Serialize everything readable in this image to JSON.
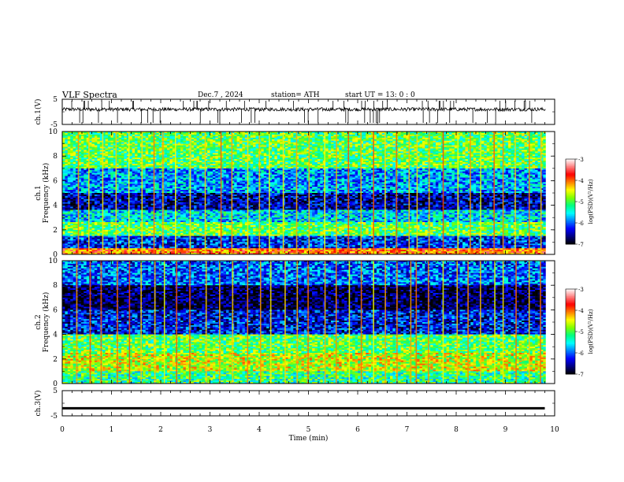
{
  "header": {
    "title": "VLF  Spectra",
    "date": "Dec.7  , 2024",
    "station": "station= ATH",
    "start": "start  UT  =    13: 0   : 0"
  },
  "colors": {
    "colormap": [
      "#000000",
      "#000080",
      "#0000ff",
      "#0080ff",
      "#00ffff",
      "#00ff80",
      "#80ff00",
      "#ffff00",
      "#ff8000",
      "#ff0000",
      "#ff8080",
      "#ffffff"
    ]
  },
  "chart_data": [
    {
      "type": "line",
      "id": "ch1-waveform",
      "ylabel": "ch.1(V)",
      "ylim": [
        -5,
        5
      ],
      "yticks": [
        "5",
        "-5"
      ],
      "note_values": "noise waveform around ~1 V with frequent short spikes"
    },
    {
      "type": "heatmap",
      "id": "ch1-spectrogram",
      "ylabel_line1": "ch.1",
      "ylabel_line2": "Frequency  (kHz)",
      "ylim": [
        0,
        10
      ],
      "yticks": [
        "0",
        "2",
        "4",
        "6",
        "8",
        "10"
      ],
      "colorbar": {
        "label": "log(PSD)(V²/Hz)",
        "range": [
          -7,
          -3
        ],
        "ticks": [
          "-3",
          "-4",
          "-5",
          "-6",
          "-7"
        ]
      },
      "bands": [
        {
          "f_low": 0.0,
          "f_high": 0.5,
          "level": -4.0
        },
        {
          "f_low": 0.5,
          "f_high": 1.5,
          "level": -6.2
        },
        {
          "f_low": 1.5,
          "f_high": 2.6,
          "level": -5.0
        },
        {
          "f_low": 2.6,
          "f_high": 3.6,
          "level": -5.6
        },
        {
          "f_low": 3.6,
          "f_high": 5.0,
          "level": -6.5
        },
        {
          "f_low": 5.0,
          "f_high": 7.0,
          "level": -5.8
        },
        {
          "f_low": 7.0,
          "f_high": 10.0,
          "level": -5.0
        }
      ]
    },
    {
      "type": "heatmap",
      "id": "ch2-spectrogram",
      "ylabel_line1": "ch.2",
      "ylabel_line2": "Frequency  (kHz)",
      "ylim": [
        0,
        10
      ],
      "yticks": [
        "0",
        "2",
        "4",
        "6",
        "8",
        "10"
      ],
      "colorbar": {
        "label": "log(PSD)(V²/Hz)",
        "range": [
          -7,
          -3
        ],
        "ticks": [
          "-3",
          "-4",
          "-5",
          "-6",
          "-7"
        ]
      },
      "bands": [
        {
          "f_low": 0.0,
          "f_high": 1.0,
          "level": -5.2
        },
        {
          "f_low": 1.0,
          "f_high": 2.5,
          "level": -4.6
        },
        {
          "f_low": 2.5,
          "f_high": 4.0,
          "level": -5.0
        },
        {
          "f_low": 4.0,
          "f_high": 6.0,
          "level": -6.3
        },
        {
          "f_low": 6.0,
          "f_high": 8.0,
          "level": -6.8
        },
        {
          "f_low": 8.0,
          "f_high": 10.0,
          "level": -6.0
        }
      ]
    },
    {
      "type": "line",
      "id": "ch3-waveform",
      "ylabel": "ch.3(V)",
      "ylim": [
        -5,
        5
      ],
      "yticks": [
        "5",
        "-5"
      ],
      "xlabel": "Time  (min)",
      "xlim": [
        0,
        10
      ],
      "xticks": [
        "0",
        "1",
        "2",
        "3",
        "4",
        "5",
        "6",
        "7",
        "8",
        "9",
        "10"
      ],
      "x": [
        0,
        9.8
      ],
      "y": [
        -2,
        -2
      ]
    }
  ],
  "sferic_times_min": [
    0.3,
    0.55,
    0.8,
    1.1,
    1.35,
    1.6,
    1.85,
    2.05,
    2.3,
    2.6,
    2.9,
    3.2,
    3.45,
    3.75,
    4.0,
    4.2,
    4.5,
    4.75,
    5.0,
    5.3,
    5.55,
    5.8,
    6.05,
    6.3,
    6.55,
    6.8,
    7.05,
    7.2,
    7.45,
    7.7,
    8.0,
    8.25,
    8.5,
    8.75,
    8.95,
    9.2,
    9.45,
    9.7
  ]
}
